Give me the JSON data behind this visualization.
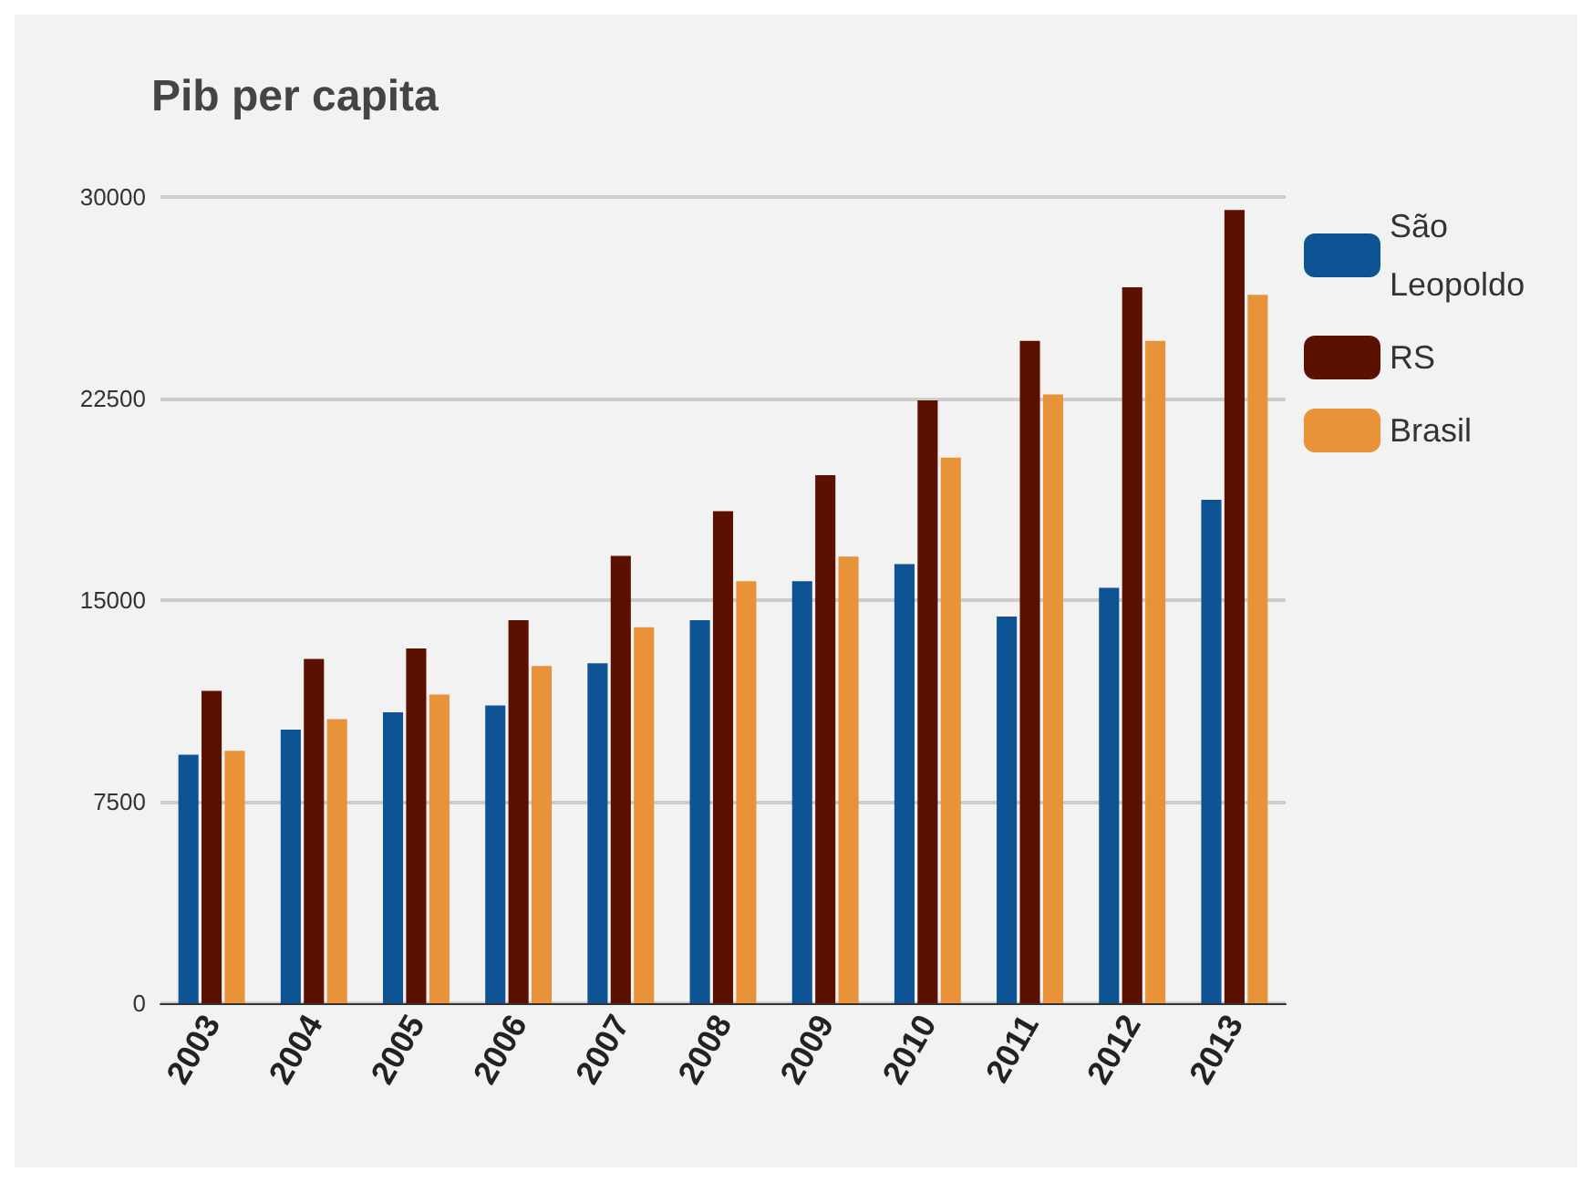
{
  "chart_data": {
    "type": "bar",
    "title": "Pib per capita",
    "categories": [
      "2003",
      "2004",
      "2005",
      "2006",
      "2007",
      "2008",
      "2009",
      "2010",
      "2011",
      "2012",
      "2013"
    ],
    "series": [
      {
        "name": "São Leopoldo",
        "color": "#0e5494",
        "values": [
          9250,
          10180,
          10830,
          11080,
          12650,
          14250,
          15700,
          16340,
          14390,
          15460,
          18730
        ]
      },
      {
        "name": "RS",
        "color": "#5c1000",
        "values": [
          11620,
          12810,
          13200,
          14250,
          16650,
          18310,
          19650,
          22430,
          24650,
          26640,
          29520
        ]
      },
      {
        "name": "Brasil",
        "color": "#e8923a",
        "values": [
          9390,
          10570,
          11490,
          12550,
          13990,
          15700,
          16620,
          20300,
          22650,
          24650,
          26360
        ]
      }
    ],
    "ylim": [
      0,
      30000
    ],
    "yticks": [
      0,
      7500,
      15000,
      22500,
      30000
    ],
    "grid": "y",
    "legend": "top right"
  }
}
